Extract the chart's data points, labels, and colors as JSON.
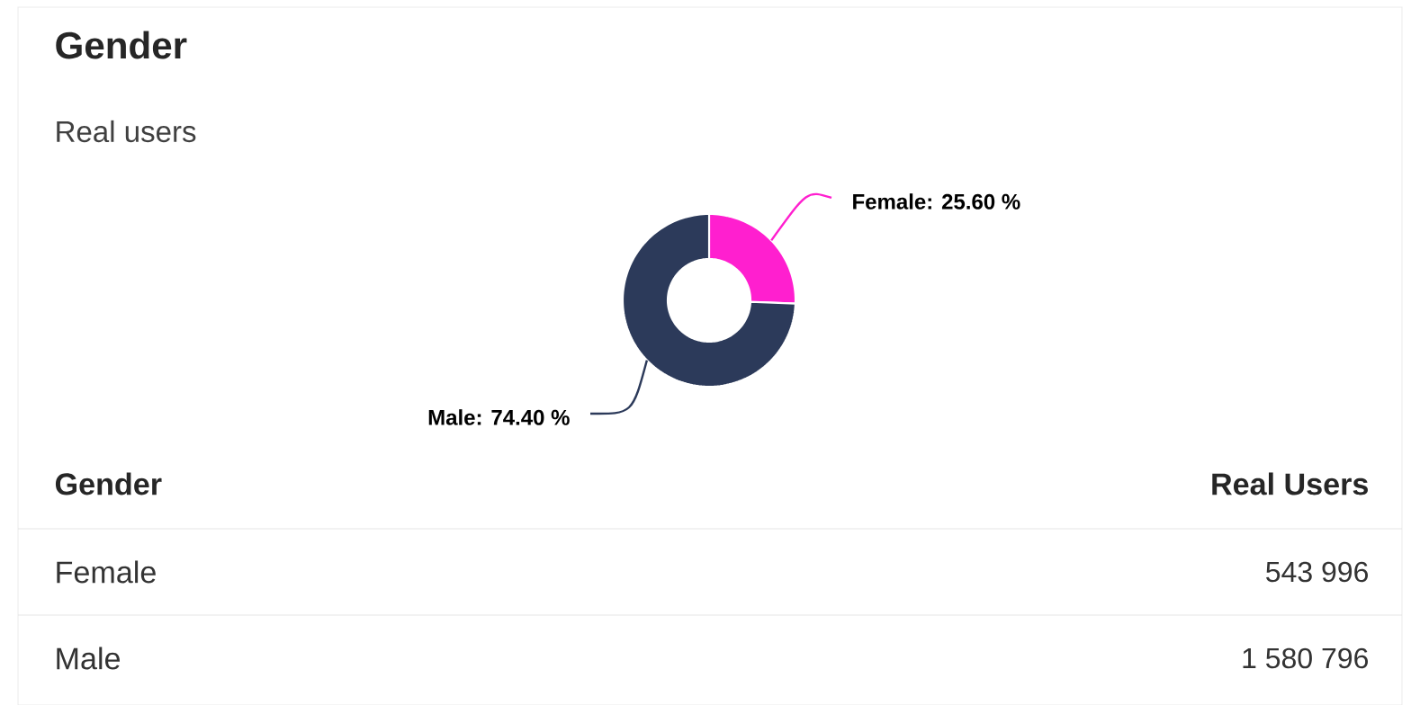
{
  "chart_data": {
    "type": "donut",
    "title": "Gender",
    "subtitle": "Real users",
    "categories": [
      "Female",
      "Male"
    ],
    "values": [
      25.6,
      74.4
    ],
    "value_labels": [
      ": 25.60 %",
      ": 74.40 %"
    ],
    "colors": [
      "#ff1fcf",
      "#2c3a5a"
    ],
    "annotations": [
      "Gender",
      "Real Users",
      "Female",
      "543 996",
      "Male",
      "1 580 796"
    ]
  }
}
